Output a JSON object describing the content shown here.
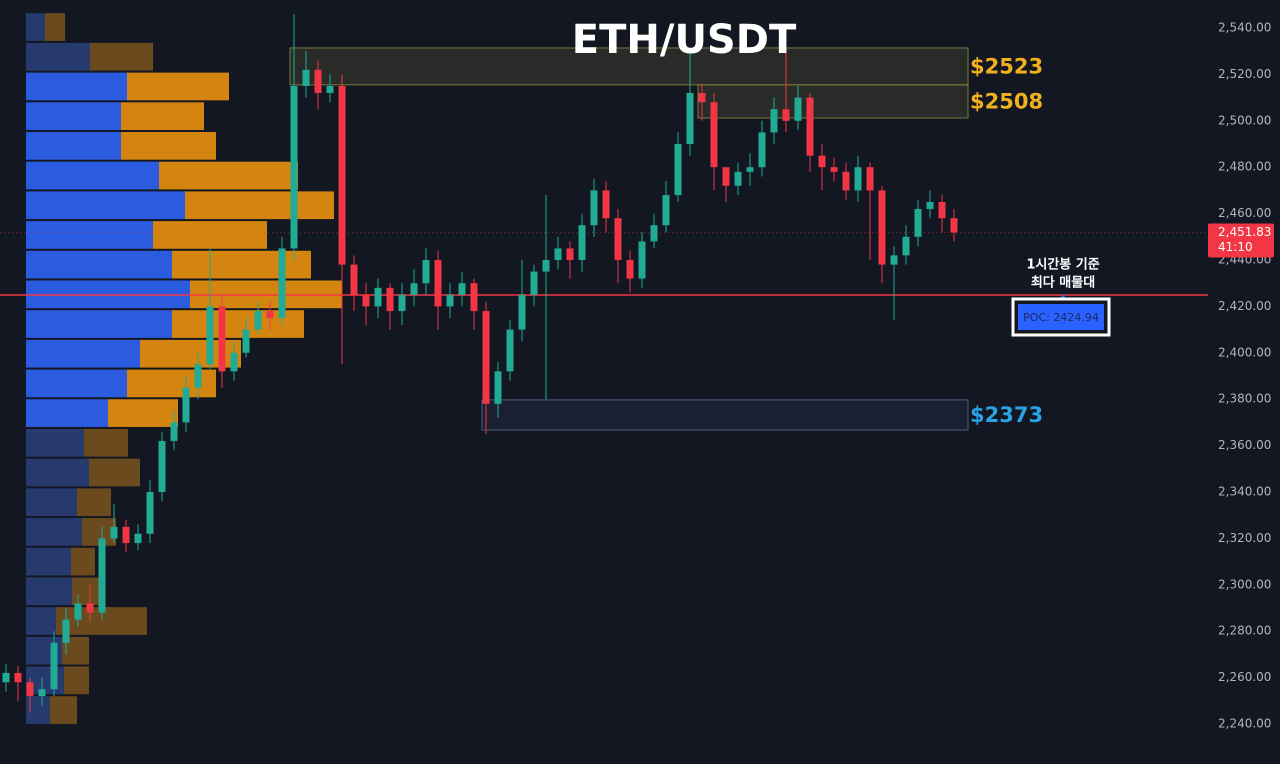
{
  "chart_data": {
    "type": "candlestick",
    "title": "ETH/USDT",
    "ylim": [
      2222.76,
      2552.07
    ],
    "yticks": [
      {
        "value": 2240,
        "label": "2,240.00"
      },
      {
        "value": 2260,
        "label": "2,260.00"
      },
      {
        "value": 2280,
        "label": "2,280.00"
      },
      {
        "value": 2300,
        "label": "2,300.00"
      },
      {
        "value": 2320,
        "label": "2,320.00"
      },
      {
        "value": 2340,
        "label": "2,340.00"
      },
      {
        "value": 2360,
        "label": "2,360.00"
      },
      {
        "value": 2380,
        "label": "2,380.00"
      },
      {
        "value": 2400,
        "label": "2,400.00"
      },
      {
        "value": 2420,
        "label": "2,420.00"
      },
      {
        "value": 2440,
        "label": "2,440.00"
      },
      {
        "value": 2460,
        "label": "2,460.00"
      },
      {
        "value": 2480,
        "label": "2,480.00"
      },
      {
        "value": 2500,
        "label": "2,500.00"
      },
      {
        "value": 2520,
        "label": "2,520.00"
      },
      {
        "value": 2540,
        "label": "2,540.00"
      }
    ],
    "grid": false,
    "up_color": "#22ab94",
    "down_color": "#f23645",
    "open": [
      2258,
      2262,
      2258,
      2252,
      2255,
      2275,
      2285,
      2292,
      2288,
      2320,
      2325,
      2318,
      2322,
      2340,
      2362,
      2370,
      2385,
      2395,
      2420,
      2392,
      2400,
      2410,
      2418,
      2415,
      2445,
      2515,
      2522,
      2512,
      2515,
      2438,
      2425,
      2420,
      2428,
      2418,
      2425,
      2430,
      2440,
      2420,
      2425,
      2430,
      2418,
      2378,
      2392,
      2410,
      2425,
      2435,
      2440,
      2445,
      2440,
      2455,
      2470,
      2458,
      2440,
      2432,
      2448,
      2455,
      2468,
      2490,
      2512,
      2508,
      2480,
      2472,
      2478,
      2480,
      2495,
      2505,
      2500,
      2510,
      2485,
      2480,
      2478,
      2470,
      2480,
      2470,
      2438,
      2442,
      2450,
      2462,
      2465,
      2458
    ],
    "high": [
      2266,
      2265,
      2260,
      2260,
      2280,
      2290,
      2296,
      2300,
      2325,
      2335,
      2328,
      2326,
      2345,
      2366,
      2375,
      2390,
      2400,
      2445,
      2425,
      2405,
      2415,
      2422,
      2422,
      2450,
      2546,
      2530,
      2526,
      2520,
      2520,
      2442,
      2430,
      2432,
      2430,
      2430,
      2436,
      2445,
      2444,
      2430,
      2435,
      2432,
      2422,
      2396,
      2414,
      2440,
      2438,
      2468,
      2450,
      2448,
      2460,
      2475,
      2474,
      2462,
      2444,
      2452,
      2460,
      2474,
      2495,
      2530,
      2516,
      2512,
      2478,
      2482,
      2486,
      2500,
      2510,
      2532,
      2515,
      2512,
      2490,
      2484,
      2482,
      2485,
      2482,
      2472,
      2446,
      2455,
      2466,
      2470,
      2468,
      2462
    ],
    "low": [
      2254,
      2250,
      2245,
      2248,
      2252,
      2270,
      2282,
      2284,
      2285,
      2318,
      2314,
      2315,
      2318,
      2336,
      2358,
      2366,
      2380,
      2393,
      2385,
      2388,
      2398,
      2408,
      2410,
      2412,
      2440,
      2510,
      2505,
      2508,
      2395,
      2418,
      2412,
      2415,
      2410,
      2412,
      2420,
      2425,
      2410,
      2415,
      2420,
      2410,
      2365,
      2372,
      2388,
      2405,
      2420,
      2380,
      2436,
      2432,
      2435,
      2450,
      2452,
      2430,
      2426,
      2428,
      2445,
      2452,
      2465,
      2485,
      2500,
      2470,
      2465,
      2468,
      2472,
      2476,
      2490,
      2495,
      2496,
      2478,
      2470,
      2474,
      2466,
      2465,
      2440,
      2430,
      2414,
      2438,
      2446,
      2458,
      2452,
      2448
    ],
    "close": [
      2262,
      2258,
      2252,
      2255,
      2275,
      2285,
      2292,
      2288,
      2320,
      2325,
      2318,
      2322,
      2340,
      2362,
      2370,
      2385,
      2395,
      2420,
      2392,
      2400,
      2410,
      2418,
      2415,
      2445,
      2515,
      2522,
      2512,
      2515,
      2438,
      2425,
      2420,
      2428,
      2418,
      2425,
      2430,
      2440,
      2420,
      2425,
      2430,
      2418,
      2378,
      2392,
      2410,
      2425,
      2435,
      2440,
      2445,
      2440,
      2455,
      2470,
      2458,
      2440,
      2432,
      2448,
      2455,
      2468,
      2490,
      2512,
      2508,
      2480,
      2472,
      2478,
      2480,
      2495,
      2505,
      2500,
      2510,
      2485,
      2480,
      2478,
      2470,
      2480,
      2470,
      2438,
      2442,
      2450,
      2462,
      2465,
      2458,
      2451.83
    ],
    "profile": {
      "bin_size": 12.8,
      "value_area": [
        2374.0,
        2514.8
      ],
      "buy_color": "#2b5ce0",
      "sell_color": "#d4850f",
      "buy_dim_color": "#263a6e",
      "sell_dim_color": "#6b4a1e",
      "prices": [
        2540.4,
        2527.6,
        2514.8,
        2502.0,
        2489.2,
        2476.4,
        2463.6,
        2450.8,
        2438.0,
        2425.2,
        2412.4,
        2399.6,
        2386.8,
        2374.0,
        2361.2,
        2348.4,
        2335.6,
        2322.8,
        2310.0,
        2297.2,
        2284.4,
        2271.6,
        2258.8,
        2246.0
      ],
      "buy": [
        19,
        64,
        101,
        95,
        95,
        133,
        159,
        127,
        146,
        164,
        146,
        114,
        101,
        82,
        58,
        63,
        51,
        56,
        45,
        46,
        30,
        36,
        38,
        24
      ],
      "sell": [
        20,
        63,
        102,
        83,
        95,
        139,
        149,
        114,
        139,
        152,
        132,
        101,
        89,
        70,
        44,
        51,
        34,
        34,
        24,
        30,
        91,
        27,
        25,
        27
      ]
    },
    "zones": [
      {
        "label": "$2523",
        "top": 2531.4,
        "bottom": 2515.5,
        "start": 24,
        "color": "#f2b01e"
      },
      {
        "label": "$2508",
        "top": 2515.5,
        "bottom": 2501.2,
        "start": 58,
        "color": "#f2b01e"
      },
      {
        "label": "$2373",
        "top": 2379.7,
        "bottom": 2366.7,
        "start": 40,
        "color": "#29a3e6"
      }
    ],
    "poc": 2424.94,
    "poc_label": "POC: 2424.94",
    "annotation": [
      "1시간봉 기준",
      "최다 매물대"
    ],
    "last_price": {
      "value": 2451.83,
      "label": "2,451.83"
    },
    "countdown": "41:10"
  }
}
